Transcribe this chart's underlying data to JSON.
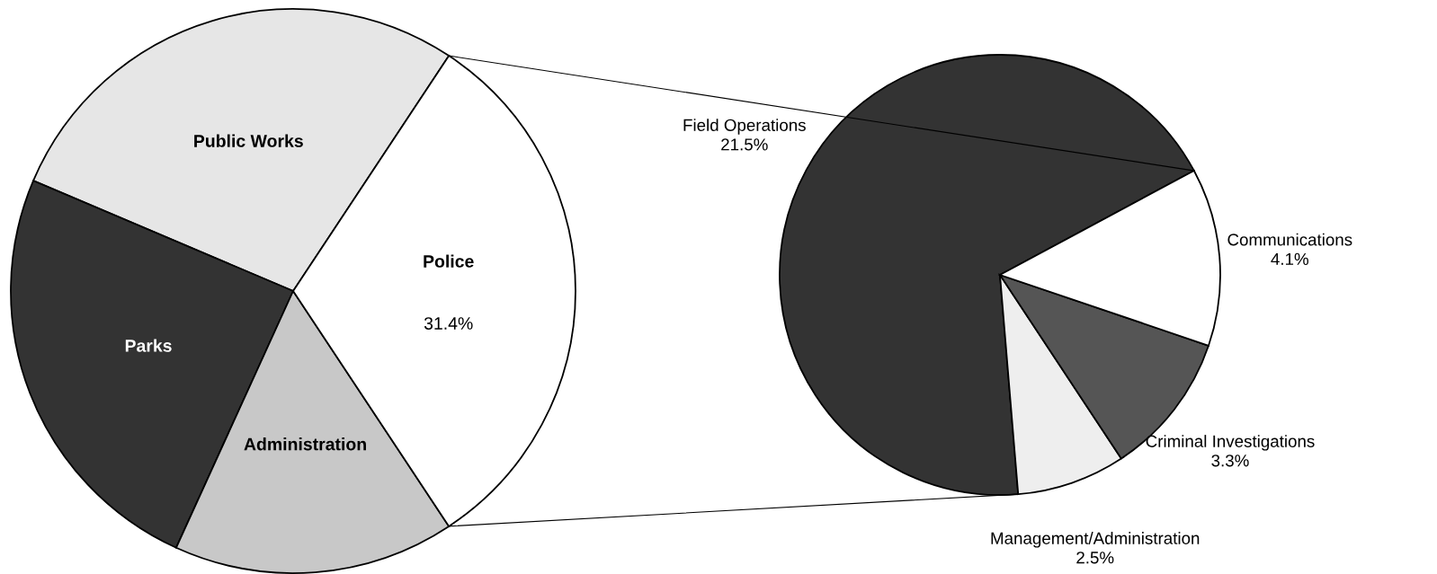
{
  "chart_data": [
    {
      "type": "pie",
      "categories": [
        "Public Works",
        "Parks",
        "Administration",
        "Police"
      ],
      "values": [
        27.9,
        24.6,
        16.1,
        31.4
      ],
      "colors": [
        "#e6e6e6",
        "#333333",
        "#c8c8c8",
        "#ffffff"
      ],
      "value_labels": [
        null,
        null,
        null,
        "31.4%"
      ]
    },
    {
      "type": "pie",
      "categories": [
        "Field Operations",
        "Management/Administration",
        "Criminal Investigations",
        "Communications"
      ],
      "values": [
        21.5,
        2.5,
        3.3,
        4.1
      ],
      "colors": [
        "#333333",
        "#eeeeee",
        "#555555",
        "#ffffff"
      ],
      "value_labels": [
        "21.5%",
        "2.5%",
        "3.3%",
        "4.1%"
      ]
    }
  ]
}
